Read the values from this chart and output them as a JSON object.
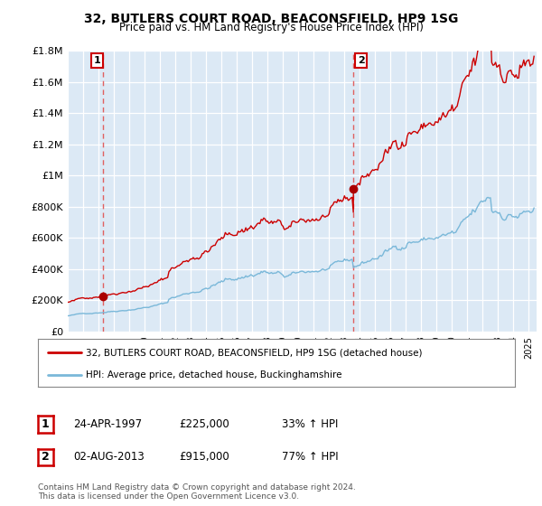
{
  "title": "32, BUTLERS COURT ROAD, BEACONSFIELD, HP9 1SG",
  "subtitle": "Price paid vs. HM Land Registry's House Price Index (HPI)",
  "legend_line1": "32, BUTLERS COURT ROAD, BEACONSFIELD, HP9 1SG (detached house)",
  "legend_line2": "HPI: Average price, detached house, Buckinghamshire",
  "annotation1_label": "1",
  "annotation1_date": "24-APR-1997",
  "annotation1_price": "£225,000",
  "annotation1_hpi": "33% ↑ HPI",
  "annotation2_label": "2",
  "annotation2_date": "02-AUG-2013",
  "annotation2_price": "£915,000",
  "annotation2_hpi": "77% ↑ HPI",
  "footnote": "Contains HM Land Registry data © Crown copyright and database right 2024.\nThis data is licensed under the Open Government Licence v3.0.",
  "hpi_color": "#7ab8d9",
  "price_color": "#cc0000",
  "vline_color": "#e06060",
  "dot_color": "#aa0000",
  "background_plot": "#dce9f5",
  "background_fig": "#ffffff",
  "ylim": [
    0,
    1800000
  ],
  "yticks": [
    0,
    200000,
    400000,
    600000,
    800000,
    1000000,
    1200000,
    1400000,
    1600000,
    1800000
  ],
  "xlim_start": 1995.0,
  "xlim_end": 2025.5,
  "sale1_year": 1997.3,
  "sale1_price": 225000,
  "sale2_year": 2013.58,
  "sale2_price": 915000
}
